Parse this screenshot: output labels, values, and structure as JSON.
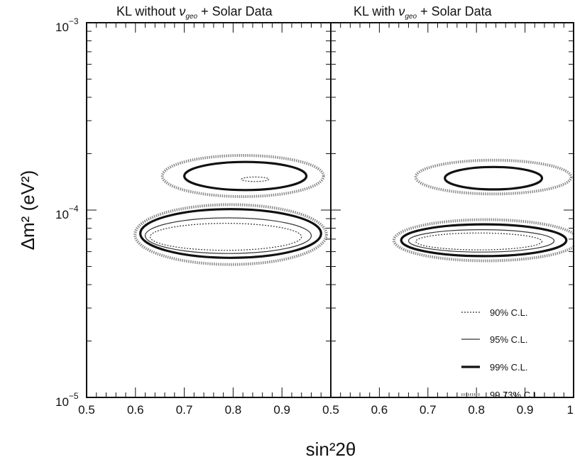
{
  "chart_data": {
    "type": "contour",
    "xlabel": "sin²2θ",
    "ylabel": "Δm² (eV²)",
    "yscale": "log",
    "ylim": [
      1e-05,
      0.001
    ],
    "ytick_labels": [
      {
        "value": 0.001,
        "mantissa": "10",
        "exp": "−3"
      },
      {
        "value": 0.0001,
        "mantissa": "10",
        "exp": "−4"
      },
      {
        "value": 1e-05,
        "mantissa": "10",
        "exp": "−5"
      }
    ],
    "legend": {
      "placement": "bottom-right of right panel",
      "entries": [
        {
          "label": "90% C.L.",
          "style": "dotted"
        },
        {
          "label": "95% C.L.",
          "style": "thin"
        },
        {
          "label": "99% C.L.",
          "style": "thick"
        },
        {
          "label": "99.73% C.L.",
          "style": "hatched"
        }
      ]
    },
    "panels": [
      {
        "title_prefix": "KL without ",
        "title_nu": "ν",
        "title_sub": "geo",
        "title_suffix": " + Solar Data",
        "xlim": [
          0.5,
          1.0
        ],
        "xtick_labels": [
          "0.5",
          "0.6",
          "0.7",
          "0.8",
          "0.9"
        ],
        "regions": [
          {
            "cl": "90% C.L.",
            "cx": 0.785,
            "cy": 7.2e-05,
            "rx": 0.155,
            "ry_dex": 0.072
          },
          {
            "cl": "95% C.L.",
            "cx": 0.79,
            "cy": 7.3e-05,
            "rx": 0.17,
            "ry_dex": 0.095
          },
          {
            "cl": "99% C.L.",
            "cx": 0.795,
            "cy": 7.5e-05,
            "rx": 0.185,
            "ry_dex": 0.13
          },
          {
            "cl": "99.73% C.L.",
            "cx": 0.795,
            "cy": 7.4e-05,
            "rx": 0.196,
            "ry_dex": 0.16
          },
          {
            "cl": "90% C.L.",
            "cx": 0.845,
            "cy": 0.000146,
            "rx": 0.028,
            "ry_dex": 0.012
          },
          {
            "cl": "99% C.L.",
            "cx": 0.825,
            "cy": 0.000152,
            "rx": 0.125,
            "ry_dex": 0.075
          },
          {
            "cl": "99.73% C.L.",
            "cx": 0.82,
            "cy": 0.000152,
            "rx": 0.165,
            "ry_dex": 0.11
          }
        ]
      },
      {
        "title_prefix": "KL with ",
        "title_nu": "ν",
        "title_sub": "geo",
        "title_suffix": " + Solar Data",
        "xlim": [
          0.5,
          1.0
        ],
        "xtick_labels": [
          "0.5",
          "0.6",
          "0.7",
          "0.8",
          "0.9",
          "1"
        ],
        "regions": [
          {
            "cl": "90% C.L.",
            "cx": 0.805,
            "cy": 6.8e-05,
            "rx": 0.13,
            "ry_dex": 0.045
          },
          {
            "cl": "95% C.L.",
            "cx": 0.81,
            "cy": 6.85e-05,
            "rx": 0.15,
            "ry_dex": 0.06
          },
          {
            "cl": "99% C.L.",
            "cx": 0.815,
            "cy": 6.9e-05,
            "rx": 0.17,
            "ry_dex": 0.085
          },
          {
            "cl": "99.73% C.L.",
            "cx": 0.82,
            "cy": 6.9e-05,
            "rx": 0.19,
            "ry_dex": 0.11
          },
          {
            "cl": "99% C.L.",
            "cx": 0.835,
            "cy": 0.000148,
            "rx": 0.1,
            "ry_dex": 0.06
          },
          {
            "cl": "99.73% C.L.",
            "cx": 0.835,
            "cy": 0.00015,
            "rx": 0.16,
            "ry_dex": 0.09
          }
        ]
      }
    ]
  }
}
